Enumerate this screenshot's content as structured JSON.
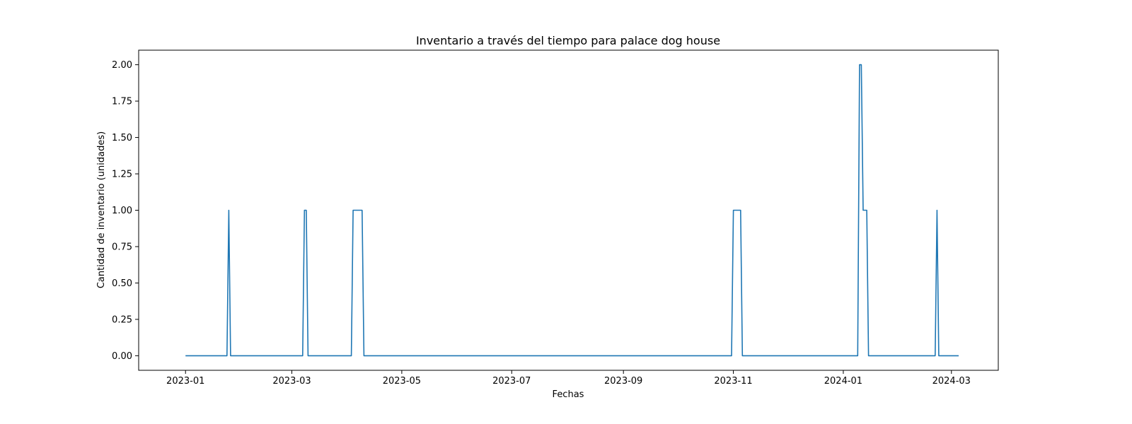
{
  "chart_data": {
    "type": "line",
    "title": "Inventario a través del tiempo para palace dog house",
    "xlabel": "Fechas",
    "ylabel": "Cantidad de inventario (unidades)",
    "x_type": "date",
    "xlim": [
      "2022-12-06",
      "2024-03-27"
    ],
    "ylim": [
      -0.1,
      2.1
    ],
    "grid": false,
    "line_color": "#1f77b4",
    "x_ticks": [
      "2023-01-01",
      "2023-03-01",
      "2023-05-01",
      "2023-07-01",
      "2023-09-01",
      "2023-11-01",
      "2024-01-01",
      "2024-03-01"
    ],
    "x_tick_labels": [
      "2023-01",
      "2023-03",
      "2023-05",
      "2023-07",
      "2023-09",
      "2023-11",
      "2024-01",
      "2024-03"
    ],
    "y_ticks": [
      0,
      0.25,
      0.5,
      0.75,
      1,
      1.25,
      1.5,
      1.75,
      2
    ],
    "y_tick_labels": [
      "0.00",
      "0.25",
      "0.50",
      "0.75",
      "1.00",
      "1.25",
      "1.50",
      "1.75",
      "2.00"
    ],
    "series": [
      {
        "x": [
          "2023-01-01",
          "2023-01-24",
          "2023-01-25",
          "2023-01-26",
          "2023-03-07",
          "2023-03-08",
          "2023-03-09",
          "2023-03-10",
          "2023-04-03",
          "2023-04-04",
          "2023-04-09",
          "2023-04-10",
          "2023-10-31",
          "2023-11-01",
          "2023-11-05",
          "2023-11-06",
          "2024-01-09",
          "2024-01-10",
          "2024-01-11",
          "2024-01-12",
          "2024-01-14",
          "2024-01-15",
          "2024-02-21",
          "2024-02-22",
          "2024-02-23",
          "2024-03-05"
        ],
        "y": [
          0,
          0,
          1,
          0,
          0,
          1,
          1,
          0,
          0,
          1,
          1,
          0,
          0,
          1,
          1,
          0,
          0,
          2,
          2,
          1,
          1,
          0,
          0,
          1,
          0,
          0
        ]
      }
    ]
  }
}
